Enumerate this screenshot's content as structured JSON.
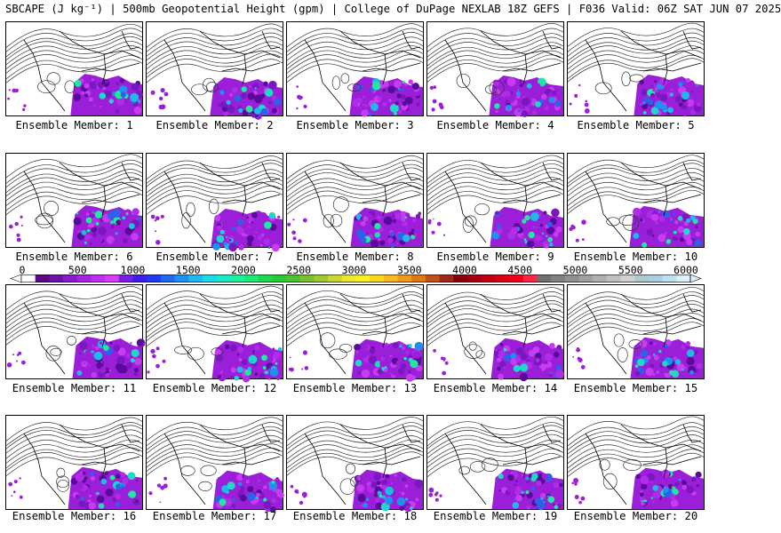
{
  "title": "SBCAPE (J kg⁻¹) | 500mb Geopotential Height (gpm) | College of DuPage NEXLAB 18Z GEFS | F036 Valid: 06Z SAT JUN 07 2025",
  "panels": [
    {
      "label": "Ensemble Member: 1"
    },
    {
      "label": "Ensemble Member: 2"
    },
    {
      "label": "Ensemble Member: 3"
    },
    {
      "label": "Ensemble Member: 4"
    },
    {
      "label": "Ensemble Member: 5"
    },
    {
      "label": "Ensemble Member: 6"
    },
    {
      "label": "Ensemble Member: 7"
    },
    {
      "label": "Ensemble Member: 8"
    },
    {
      "label": "Ensemble Member: 9"
    },
    {
      "label": "Ensemble Member: 10"
    },
    {
      "label": "Ensemble Member: 11"
    },
    {
      "label": "Ensemble Member: 12"
    },
    {
      "label": "Ensemble Member: 13"
    },
    {
      "label": "Ensemble Member: 14"
    },
    {
      "label": "Ensemble Member: 15"
    },
    {
      "label": "Ensemble Member: 16"
    },
    {
      "label": "Ensemble Member: 17"
    },
    {
      "label": "Ensemble Member: 18"
    },
    {
      "label": "Ensemble Member: 19"
    },
    {
      "label": "Ensemble Member: 20"
    }
  ],
  "colorbar": {
    "tick_labels": [
      "0",
      "500",
      "1000",
      "1500",
      "2000",
      "2500",
      "3000",
      "3500",
      "4000",
      "4500",
      "5000",
      "5500",
      "6000"
    ],
    "colors": [
      "#ffffff",
      "#5a0a82",
      "#6f12a6",
      "#8a1bc8",
      "#a524e0",
      "#c02ef0",
      "#d93cf5",
      "#7a1fe0",
      "#3c1ee6",
      "#1f3cf0",
      "#1f68f0",
      "#1f90f0",
      "#1fb8f0",
      "#1fd8e8",
      "#1fe8c8",
      "#1ff0a0",
      "#1fe878",
      "#1fd850",
      "#2ac838",
      "#50c030",
      "#78c030",
      "#a0c830",
      "#c8d830",
      "#e8e830",
      "#f8f020",
      "#f8d820",
      "#f8b820",
      "#f09818",
      "#e07818",
      "#c05018",
      "#a02818",
      "#880010",
      "#a00010",
      "#c00010",
      "#d80018",
      "#f00018",
      "#f82848",
      "#707070",
      "#808080",
      "#909090",
      "#a0a0a0",
      "#b0b0b0",
      "#c0c0c0",
      "#d0d0d0",
      "#b0c8d0",
      "#a8d0e0",
      "#c0e0f0",
      "#e0f0f8"
    ]
  }
}
